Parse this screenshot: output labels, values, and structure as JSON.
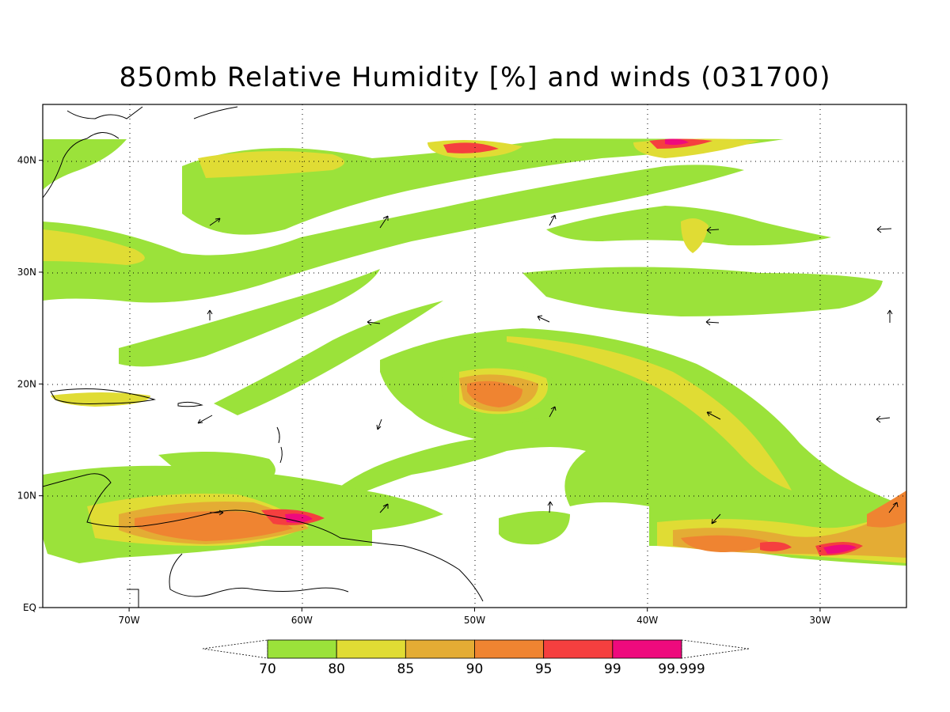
{
  "title": "850mb Relative Humidity [%] and winds (031700)",
  "map": {
    "lat_labels": [
      "EQ",
      "10N",
      "20N",
      "30N",
      "40N"
    ],
    "lat_values": [
      0,
      10,
      20,
      30,
      40
    ],
    "lon_labels": [
      "70W",
      "60W",
      "50W",
      "40W",
      "30W"
    ],
    "lon_values": [
      -70,
      -60,
      -50,
      -40,
      -30
    ],
    "lat_range": [
      0,
      45
    ],
    "lon_range": [
      -75,
      -25
    ],
    "grid": "dotted"
  },
  "colorbar": {
    "levels": [
      "70",
      "80",
      "85",
      "90",
      "95",
      "99",
      "99.999"
    ],
    "colors": [
      "#9be23a",
      "#e0dc34",
      "#e4ac34",
      "#ef8431",
      "#f53f3f",
      "#ee0a7d"
    ]
  }
}
